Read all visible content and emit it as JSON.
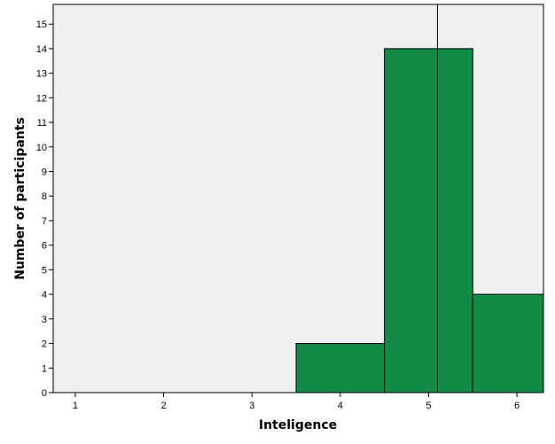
{
  "chart_data": {
    "type": "bar",
    "subtype": "histogram",
    "xlabel": "Inteligence",
    "ylabel": "Number of participants",
    "xlim": [
      0.75,
      6.3
    ],
    "ylim": [
      0,
      15.8
    ],
    "x_ticks": [
      "1",
      "2",
      "3",
      "4",
      "5",
      "6"
    ],
    "y_ticks": [
      "0",
      "1",
      "2",
      "3",
      "4",
      "5",
      "6",
      "7",
      "8",
      "9",
      "10",
      "11",
      "12",
      "13",
      "14",
      "15"
    ],
    "bins": [
      {
        "start": 3.5,
        "end": 4.5,
        "value": 2
      },
      {
        "start": 4.5,
        "end": 5.5,
        "value": 14
      },
      {
        "start": 5.5,
        "end": 6.5,
        "value": 4
      }
    ],
    "reference_line_x": 5.1,
    "grid": false,
    "colors": {
      "bar_fill": "#128B46",
      "bar_stroke": "#000000",
      "plot_background": "#F0F0F0"
    }
  }
}
